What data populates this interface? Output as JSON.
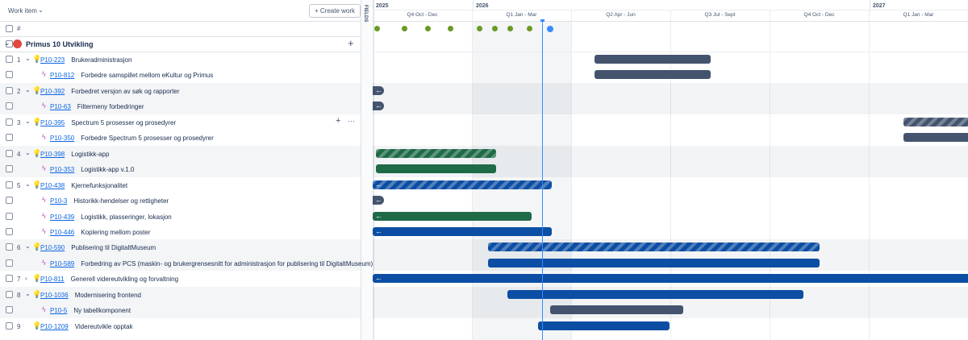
{
  "header": {
    "column_title": "Work item",
    "create_button": "+ Create work",
    "fields_tab": "FIELDS",
    "number_column": "#"
  },
  "timeline": {
    "years": [
      "2025",
      "2026",
      "2027"
    ],
    "quarters": [
      "Q4 Oct - Dec",
      "Q1 Jan - Mar",
      "Q2 Apr - Jun",
      "Q3 Jul - Sept",
      "Q4 Oct - Dec",
      "Q1 Jan - Mar"
    ]
  },
  "project": {
    "name": "Primus 10 Utvikling"
  },
  "rows": [
    {
      "num": "1",
      "key": "P10-223",
      "summary": "Brukeradministrasjon"
    },
    {
      "key": "P10-812",
      "summary": "Forbedre samspillet mellom eKultur og Primus"
    },
    {
      "num": "2",
      "key": "P10-392",
      "summary": "Forbedret versjon av søk og rapporter"
    },
    {
      "key": "P10-63",
      "summary": "Filtermeny forbedringer"
    },
    {
      "num": "3",
      "key": "P10-395",
      "summary": "Spectrum 5 prosesser og prosedyrer"
    },
    {
      "key": "P10-350",
      "summary": "Forbedre Spectrum 5 prosesser og prosedyrer"
    },
    {
      "num": "4",
      "key": "P10-398",
      "summary": "Logistikk-app"
    },
    {
      "key": "P10-353",
      "summary": "Logistikk-app v.1.0"
    },
    {
      "num": "5",
      "key": "P10-438",
      "summary": "Kjernefunksjonalitet"
    },
    {
      "key": "P10-3",
      "summary": "Historikk-hendelser og rettigheter"
    },
    {
      "key": "P10-439",
      "summary": "Logistikk, plasseringer, lokasjon"
    },
    {
      "key": "P10-446",
      "summary": "Koplering mellom poster"
    },
    {
      "num": "6",
      "key": "P10-590",
      "summary": "Publisering til DigitaltMuseum"
    },
    {
      "key": "P10-589",
      "summary": "Forbedring av PCS (maskin- og brukergrensesnitt for administrasjon for publisering til DigitaltMuseum)"
    },
    {
      "num": "7",
      "key": "P10-811",
      "summary": "Generell videreutvikling og forvaltning"
    },
    {
      "num": "8",
      "key": "P10-1036",
      "summary": "Modernisering frontend"
    },
    {
      "key": "P10-5",
      "summary": "Ny tabellkomponent"
    },
    {
      "num": "9",
      "key": "P10-1209",
      "summary": "Videreutvikle opptak"
    }
  ]
}
